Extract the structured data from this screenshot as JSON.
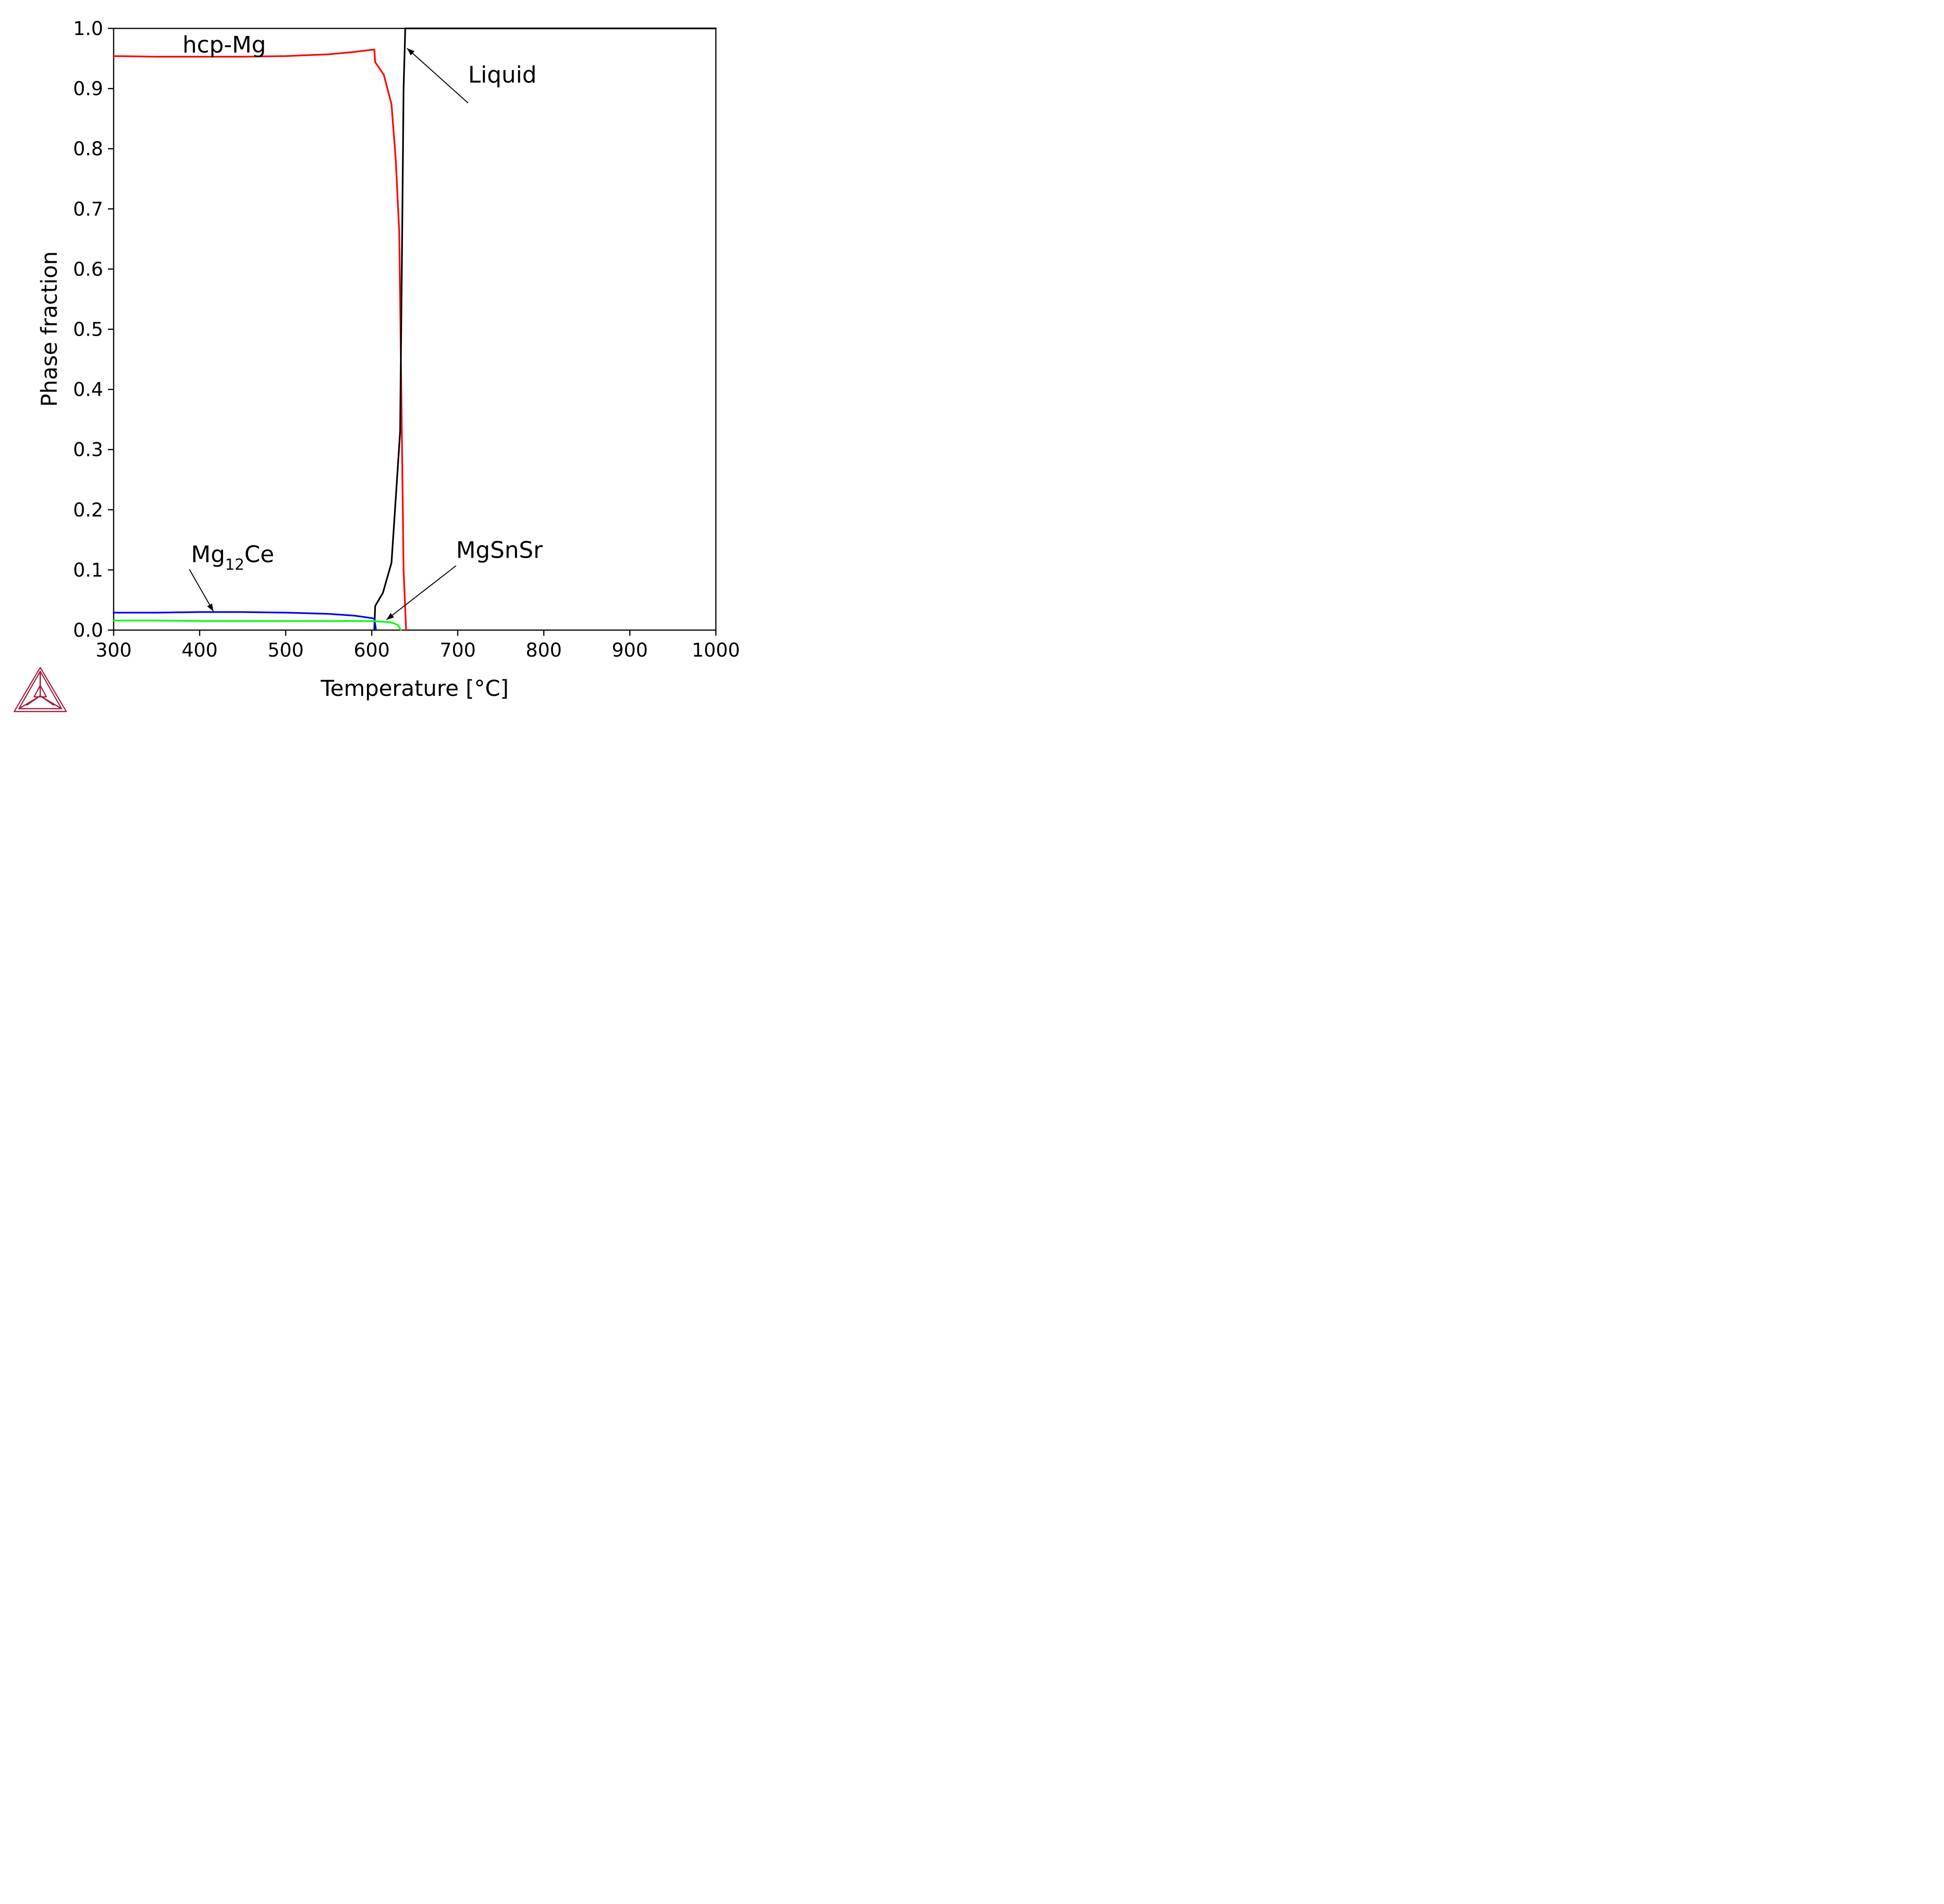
{
  "chart_data": {
    "type": "line",
    "xlabel": "Temperature [°C]",
    "ylabel": "Phase fraction",
    "xlim": [
      300,
      1000
    ],
    "ylim": [
      0,
      1
    ],
    "x_ticks": [
      "300",
      "400",
      "500",
      "600",
      "700",
      "800",
      "900",
      "1000"
    ],
    "y_ticks": [
      "0.0",
      "0.1",
      "0.2",
      "0.3",
      "0.4",
      "0.5",
      "0.6",
      "0.7",
      "0.8",
      "0.9",
      "1.0"
    ],
    "grid": false,
    "legend": "none",
    "series": [
      {
        "color": "#ff0000",
        "points": [
          [
            300,
            0.954
          ],
          [
            350,
            0.953
          ],
          [
            400,
            0.953
          ],
          [
            450,
            0.953
          ],
          [
            500,
            0.954
          ],
          [
            550,
            0.957
          ],
          [
            580,
            0.961
          ],
          [
            603,
            0.965
          ],
          [
            604,
            0.944
          ],
          [
            614,
            0.923
          ],
          [
            623,
            0.874
          ],
          [
            628,
            0.78
          ],
          [
            632,
            0.66
          ],
          [
            635,
            0.33
          ],
          [
            637,
            0.1
          ],
          [
            640,
            0.0
          ]
        ]
      },
      {
        "color": "#000000",
        "points": [
          [
            603,
            0.0
          ],
          [
            604,
            0.04
          ],
          [
            613,
            0.062
          ],
          [
            623,
            0.112
          ],
          [
            628,
            0.22
          ],
          [
            633,
            0.33
          ],
          [
            635,
            0.6
          ],
          [
            637,
            0.9
          ],
          [
            639,
            1.0
          ],
          [
            1000,
            1.0
          ]
        ]
      },
      {
        "color": "#0000ff",
        "points": [
          [
            300,
            0.029
          ],
          [
            350,
            0.029
          ],
          [
            400,
            0.03
          ],
          [
            450,
            0.03
          ],
          [
            500,
            0.029
          ],
          [
            550,
            0.027
          ],
          [
            580,
            0.024
          ],
          [
            600,
            0.02
          ],
          [
            603,
            0.019
          ],
          [
            605,
            0.0
          ]
        ]
      },
      {
        "color": "#00ff00",
        "points": [
          [
            300,
            0.016
          ],
          [
            350,
            0.016
          ],
          [
            400,
            0.015
          ],
          [
            450,
            0.015
          ],
          [
            500,
            0.015
          ],
          [
            550,
            0.015
          ],
          [
            580,
            0.015
          ],
          [
            600,
            0.015
          ],
          [
            612,
            0.014
          ],
          [
            622,
            0.013
          ],
          [
            630,
            0.009
          ],
          [
            634,
            0.0
          ]
        ]
      }
    ],
    "annotations": [
      {
        "key": "hcp",
        "text": "hcp-Mg",
        "sub": "",
        "tail": "",
        "at": [
          380,
          0.96
        ],
        "arrow_to": null
      },
      {
        "key": "liquid",
        "text": "Liquid",
        "sub": "",
        "tail": "",
        "at": [
          712,
          0.91
        ],
        "arrow_from": [
          712,
          0.876
        ],
        "arrow_to": [
          641,
          0.967
        ]
      },
      {
        "key": "mg12ce",
        "text": "Mg",
        "sub": "12",
        "tail": "Ce",
        "at": [
          390,
          0.113
        ],
        "arrow_from": [
          388,
          0.101
        ],
        "arrow_to": [
          416,
          0.031
        ]
      },
      {
        "key": "mgsnsr",
        "text": "MgSnSr",
        "sub": "",
        "tail": "",
        "at": [
          698,
          0.12
        ],
        "arrow_from": [
          698,
          0.107
        ],
        "arrow_to": [
          617,
          0.017
        ]
      }
    ]
  },
  "logo": {
    "name": "thermo-calc-logo-icon",
    "color": "#a0203a"
  }
}
